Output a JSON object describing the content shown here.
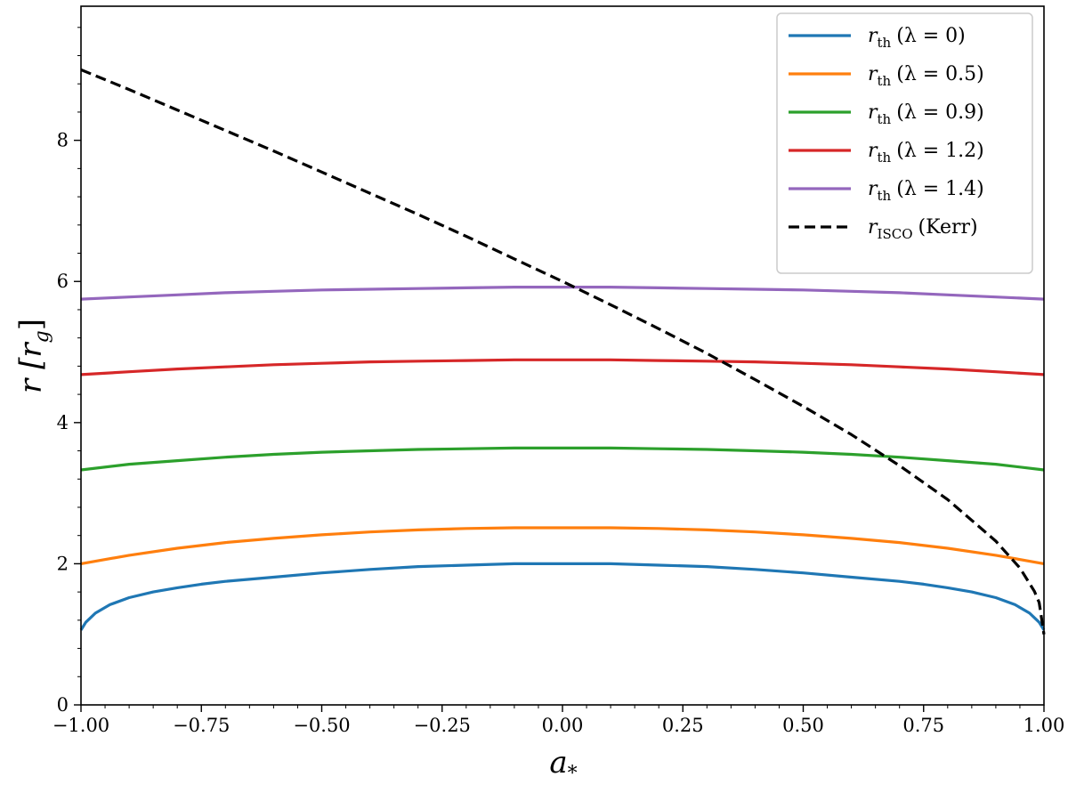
{
  "chart_data": {
    "type": "line",
    "title": "",
    "xlabel": "a",
    "xlabel_sub": "*",
    "ylabel": "r [r",
    "ylabel_sub": "g",
    "ylabel_close": "]",
    "xlim": [
      -1.0,
      1.0
    ],
    "ylim": [
      0,
      9.9
    ],
    "xticks": [
      -1.0,
      -0.75,
      -0.5,
      -0.25,
      0.0,
      0.25,
      0.5,
      0.75,
      1.0
    ],
    "xtick_labels": [
      "−1.00",
      "−0.75",
      "−0.50",
      "−0.25",
      "0.00",
      "0.25",
      "0.50",
      "0.75",
      "1.00"
    ],
    "yticks": [
      0,
      2,
      4,
      6,
      8
    ],
    "ytick_labels": [
      "0",
      "2",
      "4",
      "6",
      "8"
    ],
    "grid": false,
    "legend_position": "top-right",
    "series": [
      {
        "name": "r_th (λ = 0)",
        "label_main": "r",
        "label_sub": "th",
        "label_rest": "(λ = 0)",
        "color": "#1f77b4",
        "dash": "solid",
        "x": [
          -1.0,
          -0.99,
          -0.97,
          -0.94,
          -0.9,
          -0.85,
          -0.8,
          -0.75,
          -0.7,
          -0.6,
          -0.5,
          -0.4,
          -0.3,
          -0.2,
          -0.1,
          0.0,
          0.1,
          0.2,
          0.3,
          0.4,
          0.5,
          0.6,
          0.7,
          0.75,
          0.8,
          0.85,
          0.9,
          0.94,
          0.97,
          0.99,
          1.0
        ],
        "y": [
          1.06,
          1.17,
          1.3,
          1.42,
          1.52,
          1.6,
          1.66,
          1.71,
          1.75,
          1.81,
          1.87,
          1.92,
          1.96,
          1.98,
          2.0,
          2.0,
          2.0,
          1.98,
          1.96,
          1.92,
          1.87,
          1.81,
          1.75,
          1.71,
          1.66,
          1.6,
          1.52,
          1.42,
          1.3,
          1.17,
          1.06
        ]
      },
      {
        "name": "r_th (λ = 0.5)",
        "label_main": "r",
        "label_sub": "th",
        "label_rest": "(λ = 0.5)",
        "color": "#ff7f0e",
        "dash": "solid",
        "x": [
          -1.0,
          -0.9,
          -0.8,
          -0.7,
          -0.6,
          -0.5,
          -0.4,
          -0.3,
          -0.2,
          -0.1,
          0.0,
          0.1,
          0.2,
          0.3,
          0.4,
          0.5,
          0.6,
          0.7,
          0.8,
          0.9,
          1.0
        ],
        "y": [
          2.0,
          2.12,
          2.22,
          2.3,
          2.36,
          2.41,
          2.45,
          2.48,
          2.5,
          2.51,
          2.51,
          2.51,
          2.5,
          2.48,
          2.45,
          2.41,
          2.36,
          2.3,
          2.22,
          2.12,
          2.0
        ]
      },
      {
        "name": "r_th (λ = 0.9)",
        "label_main": "r",
        "label_sub": "th",
        "label_rest": "(λ = 0.9)",
        "color": "#2ca02c",
        "dash": "solid",
        "x": [
          -1.0,
          -0.9,
          -0.8,
          -0.7,
          -0.6,
          -0.5,
          -0.4,
          -0.3,
          -0.2,
          -0.1,
          0.0,
          0.1,
          0.2,
          0.3,
          0.4,
          0.5,
          0.6,
          0.7,
          0.8,
          0.9,
          1.0
        ],
        "y": [
          3.33,
          3.41,
          3.46,
          3.51,
          3.55,
          3.58,
          3.6,
          3.62,
          3.63,
          3.64,
          3.64,
          3.64,
          3.63,
          3.62,
          3.6,
          3.58,
          3.55,
          3.51,
          3.46,
          3.41,
          3.33
        ]
      },
      {
        "name": "r_th (λ = 1.2)",
        "label_main": "r",
        "label_sub": "th",
        "label_rest": "(λ = 1.2)",
        "color": "#d62728",
        "dash": "solid",
        "x": [
          -1.0,
          -0.9,
          -0.8,
          -0.7,
          -0.6,
          -0.5,
          -0.4,
          -0.3,
          -0.2,
          -0.1,
          0.0,
          0.1,
          0.2,
          0.3,
          0.4,
          0.5,
          0.6,
          0.7,
          0.8,
          0.9,
          1.0
        ],
        "y": [
          4.68,
          4.72,
          4.76,
          4.79,
          4.82,
          4.84,
          4.86,
          4.87,
          4.88,
          4.89,
          4.89,
          4.89,
          4.88,
          4.87,
          4.86,
          4.84,
          4.82,
          4.79,
          4.76,
          4.72,
          4.68
        ]
      },
      {
        "name": "r_th (λ = 1.4)",
        "label_main": "r",
        "label_sub": "th",
        "label_rest": "(λ = 1.4)",
        "color": "#9467bd",
        "dash": "solid",
        "x": [
          -1.0,
          -0.9,
          -0.8,
          -0.7,
          -0.6,
          -0.5,
          -0.4,
          -0.3,
          -0.2,
          -0.1,
          0.0,
          0.1,
          0.2,
          0.3,
          0.4,
          0.5,
          0.6,
          0.7,
          0.8,
          0.9,
          1.0
        ],
        "y": [
          5.75,
          5.78,
          5.81,
          5.84,
          5.86,
          5.88,
          5.89,
          5.9,
          5.91,
          5.92,
          5.92,
          5.92,
          5.91,
          5.9,
          5.89,
          5.88,
          5.86,
          5.84,
          5.81,
          5.78,
          5.75
        ]
      },
      {
        "name": "r_ISCO (Kerr)",
        "label_main": "r",
        "label_sub": "ISCO",
        "label_rest": "(Kerr)",
        "color": "#000000",
        "dash": "dashed",
        "x": [
          -1.0,
          -0.9,
          -0.8,
          -0.7,
          -0.6,
          -0.5,
          -0.4,
          -0.3,
          -0.2,
          -0.1,
          0.0,
          0.1,
          0.2,
          0.3,
          0.4,
          0.5,
          0.6,
          0.7,
          0.8,
          0.9,
          0.95,
          0.98,
          0.99,
          1.0
        ],
        "y": [
          9.0,
          8.72,
          8.43,
          8.14,
          7.85,
          7.55,
          7.25,
          6.95,
          6.64,
          6.32,
          6.0,
          5.67,
          5.33,
          4.98,
          4.61,
          4.23,
          3.83,
          3.39,
          2.91,
          2.32,
          1.94,
          1.61,
          1.45,
          1.0
        ]
      }
    ]
  }
}
